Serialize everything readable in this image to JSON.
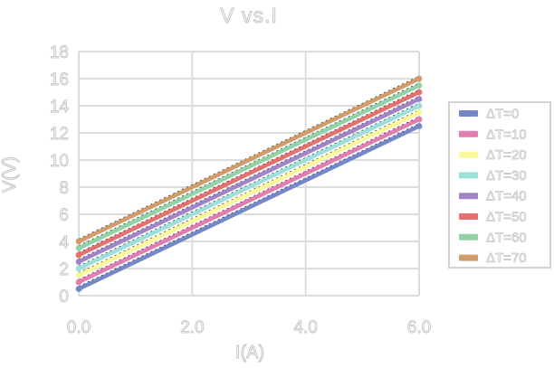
{
  "chart_data": {
    "type": "line",
    "title": "V vs.I",
    "xlabel": "I(A)",
    "ylabel": "V(V)",
    "xlim": [
      0,
      6
    ],
    "ylim": [
      0,
      18
    ],
    "x_tick_values": [
      0,
      2,
      4,
      6
    ],
    "x_tick_labels": [
      "0.0",
      "2.0",
      "4.0",
      "6.0"
    ],
    "y_tick_values": [
      0,
      2,
      4,
      6,
      8,
      10,
      12,
      14,
      16,
      18
    ],
    "y_tick_labels": [
      "0",
      "2",
      "4",
      "6",
      "8",
      "10",
      "12",
      "14",
      "16",
      "18"
    ],
    "grid": true,
    "legend_position": "right",
    "marker": "circle-at-endpoints",
    "trendline_style": "black dotted linear trendline behind each series",
    "x": [
      0,
      6
    ],
    "series": [
      {
        "name": "ΔT=0",
        "color": "#7487c7",
        "values": [
          0.5,
          12.5
        ]
      },
      {
        "name": "ΔT=10",
        "color": "#e27db2",
        "values": [
          1.0,
          13.0
        ]
      },
      {
        "name": "ΔT=20",
        "color": "#fbf79b",
        "values": [
          1.5,
          13.5
        ]
      },
      {
        "name": "ΔT=30",
        "color": "#9edfdb",
        "values": [
          2.0,
          14.0
        ]
      },
      {
        "name": "ΔT=40",
        "color": "#a184c6",
        "values": [
          2.5,
          14.5
        ]
      },
      {
        "name": "ΔT=50",
        "color": "#e57070",
        "values": [
          3.0,
          15.0
        ]
      },
      {
        "name": "ΔT=60",
        "color": "#92d2a6",
        "values": [
          3.5,
          15.5
        ]
      },
      {
        "name": "ΔT=70",
        "color": "#d19c6b",
        "values": [
          4.0,
          16.0
        ]
      }
    ]
  },
  "colors": {
    "background": "#ffffff",
    "gridline": "#dcdcdc",
    "legend_border": "#d4d4d4",
    "text_outline": "#c6c6c6",
    "trendline": "#2a2a2a"
  }
}
